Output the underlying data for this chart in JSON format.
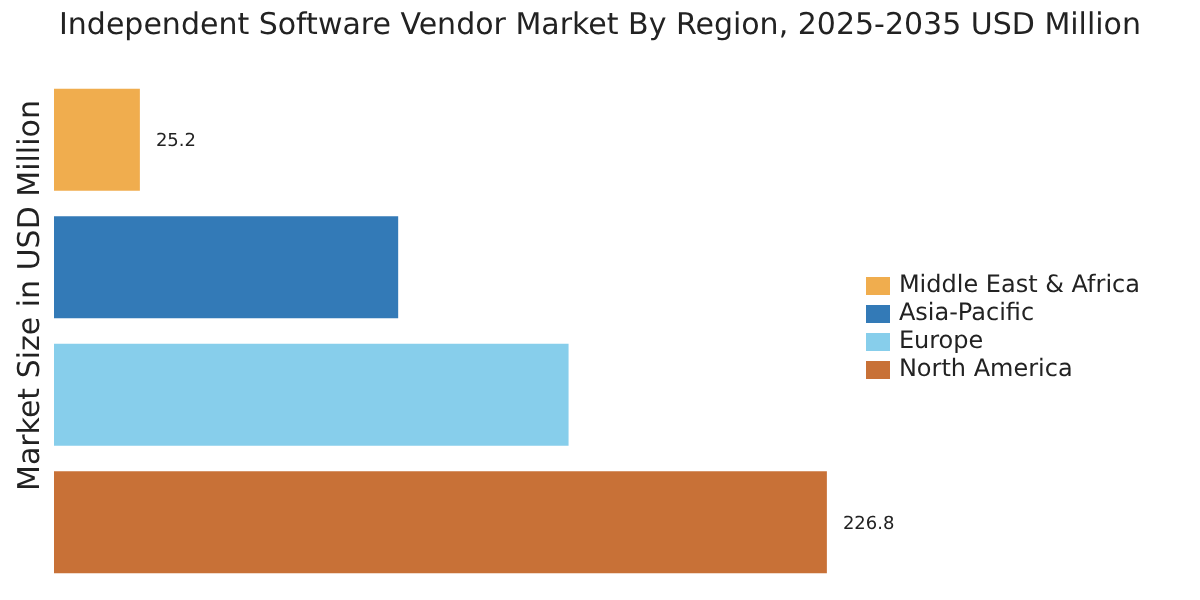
{
  "chart_data": {
    "type": "bar",
    "orientation": "horizontal",
    "stacked": true,
    "title": "Independent Software Vendor Market By Region, 2025-2035 USD Million",
    "ylabel": "Market Size in USD Million",
    "categories": [
      null,
      null,
      null,
      null
    ],
    "series": [
      {
        "name": "Middle East & Africa",
        "color": "#f0ad4e",
        "values": [
          25.2,
          null,
          null,
          null
        ],
        "value_labels": [
          "25.2",
          null,
          null,
          null
        ]
      },
      {
        "name": "Asia-Pacific",
        "color": "#337ab7",
        "values": [
          null,
          101,
          null,
          null
        ]
      },
      {
        "name": "Europe",
        "color": "#87ceeb",
        "values": [
          null,
          null,
          151,
          null
        ]
      },
      {
        "name": "North America",
        "color": "#c87137",
        "values": [
          null,
          null,
          null,
          226.8
        ],
        "value_labels": [
          null,
          null,
          null,
          "226.8"
        ]
      }
    ],
    "tick_labels": false,
    "legend": "right"
  }
}
